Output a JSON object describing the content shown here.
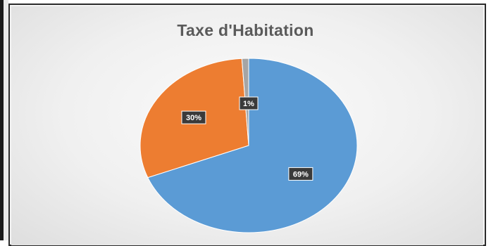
{
  "chart_data": {
    "type": "pie",
    "title": "Taxe d'Habitation",
    "slices": [
      {
        "label": "69%",
        "value": 69,
        "color": "#5b9bd5"
      },
      {
        "label": "30%",
        "value": 30,
        "color": "#ed7d31"
      },
      {
        "label": "1%",
        "value": 1,
        "color": "#a5a5a5"
      }
    ],
    "legend": "none"
  }
}
